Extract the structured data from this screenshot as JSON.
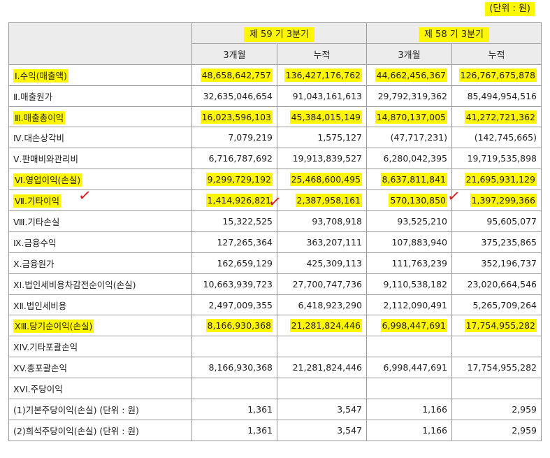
{
  "unit_label": "(단위 : 원)",
  "header": {
    "period1": "제 59 기 3분기",
    "period2": "제 58 기 3분기",
    "sub": [
      "3개월",
      "누적",
      "3개월",
      "누적"
    ]
  },
  "rows": [
    {
      "label": "Ⅰ.수익(매출액)",
      "v": [
        "48,658,642,757",
        "136,427,176,762",
        "44,662,456,367",
        "126,767,675,878"
      ]
    },
    {
      "label": "Ⅱ.매출원가",
      "v": [
        "32,635,046,654",
        "91,043,161,613",
        "29,792,319,362",
        "85,494,954,516"
      ]
    },
    {
      "label": "Ⅲ.매출총이익",
      "v": [
        "16,023,596,103",
        "45,384,015,149",
        "14,870,137,005",
        "41,272,721,362"
      ]
    },
    {
      "label": "Ⅳ.대손상각비",
      "v": [
        "7,079,219",
        "1,575,127",
        "(47,717,231)",
        "(142,745,665)"
      ]
    },
    {
      "label": "Ⅴ.판매비와관리비",
      "v": [
        "6,716,787,692",
        "19,913,839,527",
        "6,280,042,395",
        "19,719,535,898"
      ]
    },
    {
      "label": "Ⅵ.영업이익(손실)",
      "v": [
        "9,299,729,192",
        "25,468,600,495",
        "8,637,811,841",
        "21,695,931,129"
      ]
    },
    {
      "label": "Ⅶ.기타이익",
      "v": [
        "1,414,926,821",
        "2,387,958,161",
        "570,130,850",
        "1,397,299,366"
      ]
    },
    {
      "label": "Ⅷ.기타손실",
      "v": [
        "15,322,525",
        "93,708,918",
        "93,525,210",
        "95,605,077"
      ]
    },
    {
      "label": "Ⅸ.금융수익",
      "v": [
        "127,265,364",
        "363,207,111",
        "107,883,940",
        "375,235,865"
      ]
    },
    {
      "label": "Ⅹ.금융원가",
      "v": [
        "162,659,129",
        "425,309,113",
        "111,763,239",
        "352,196,737"
      ]
    },
    {
      "label": "XI.법인세비용차감전순이익(손실)",
      "v": [
        "10,663,939,723",
        "27,700,747,736",
        "9,110,538,182",
        "23,020,664,546"
      ]
    },
    {
      "label": "XⅡ.법인세비용",
      "v": [
        "2,497,009,355",
        "6,418,923,290",
        "2,112,090,491",
        "5,265,709,264"
      ]
    },
    {
      "label": "XⅢ.당기순이익(손실)",
      "v": [
        "8,166,930,368",
        "21,281,824,446",
        "6,998,447,691",
        "17,754,955,282"
      ]
    },
    {
      "label": "XIV.기타포괄손익",
      "v": [
        "",
        "",
        "",
        ""
      ]
    },
    {
      "label": "XV.총포괄손익",
      "v": [
        "8,166,930,368",
        "21,281,824,446",
        "6,998,447,691",
        "17,754,955,282"
      ]
    },
    {
      "label": "XVI.주당이익",
      "v": [
        "",
        "",
        "",
        ""
      ]
    },
    {
      "label": "(1)기본주당이익(손실) (단위 : 원)",
      "v": [
        "1,361",
        "3,547",
        "1,166",
        "2,959"
      ]
    },
    {
      "label": "(2)희석주당이익(손실) (단위 : 원)",
      "v": [
        "1,361",
        "3,547",
        "1,166",
        "2,959"
      ]
    }
  ]
}
